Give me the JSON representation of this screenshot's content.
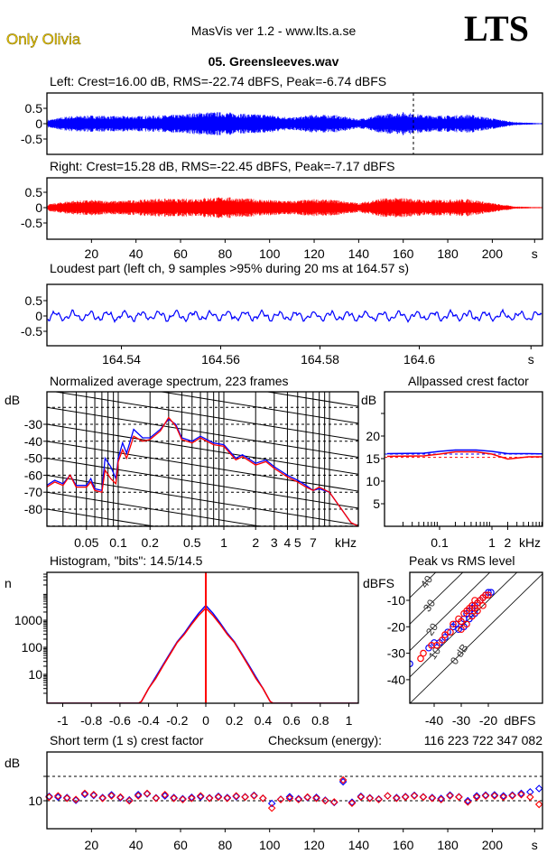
{
  "header": {
    "artist": "Only Olivia",
    "app": "MasVis ver 1.2 - www.lts.a.se",
    "logo": "LTS",
    "file": "05. Greensleeves.wav"
  },
  "colors": {
    "left": "#0000ff",
    "right": "#ff0000",
    "olivia": "#e8c400"
  },
  "chart_data": [
    {
      "id": "left",
      "type": "area",
      "title": "Left: Crest=16.00 dB, RMS=-22.74 dBFS, Peak=-6.74 dBFS",
      "ylim": [
        -1,
        1
      ],
      "yticks": [
        "0.5",
        "0",
        "-0.5"
      ],
      "ytick_values": [
        0.5,
        0,
        -0.5
      ],
      "marker_time_s": 164.57,
      "envelope_step_s": 10,
      "envelope": [
        0.12,
        0.25,
        0.27,
        0.25,
        0.25,
        0.27,
        0.3,
        0.38,
        0.38,
        0.32,
        0.3,
        0.2,
        0.3,
        0.28,
        0.15,
        0.3,
        0.38,
        0.28,
        0.27,
        0.3,
        0.18,
        0.05,
        0.02
      ]
    },
    {
      "id": "right",
      "type": "area",
      "title": "Right: Crest=15.28 dB, RMS=-22.45 dBFS, Peak=-7.17 dBFS",
      "ylim": [
        -1,
        1
      ],
      "yticks": [
        "0.5",
        "0",
        "-0.5"
      ],
      "ytick_values": [
        0.5,
        0,
        -0.5
      ],
      "xlim": [
        0,
        221
      ],
      "xticks": [
        "20",
        "40",
        "60",
        "80",
        "100",
        "120",
        "140",
        "160",
        "180",
        "200",
        "s"
      ],
      "xtick_values": [
        20,
        40,
        60,
        80,
        100,
        120,
        140,
        160,
        180,
        200,
        219
      ],
      "envelope_step_s": 10,
      "envelope": [
        0.1,
        0.22,
        0.25,
        0.22,
        0.25,
        0.3,
        0.28,
        0.32,
        0.35,
        0.3,
        0.25,
        0.22,
        0.28,
        0.25,
        0.15,
        0.3,
        0.32,
        0.25,
        0.27,
        0.28,
        0.15,
        0.04,
        0.02
      ]
    },
    {
      "id": "loudest",
      "type": "line",
      "title": "Loudest part (left  ch, 9 samples >95% during 20 ms at 164.57 s)",
      "xlim": [
        164.525,
        164.625
      ],
      "ylim": [
        -1,
        1
      ],
      "yticks": [
        "0.5",
        "0",
        "-0.5"
      ],
      "ytick_values": [
        0.5,
        0,
        -0.5
      ],
      "xticks": [
        "164.54",
        "164.56",
        "164.58",
        "164.6",
        "s"
      ],
      "xtick_values": [
        164.54,
        164.56,
        164.58,
        164.6,
        164.6225
      ],
      "amplitude": 0.2
    },
    {
      "id": "spectrum",
      "type": "line",
      "title": "Normalized average spectrum, 223 frames",
      "ylabel": "dB",
      "xlabel": "kHz",
      "yticks": [
        "-30",
        "-40",
        "-50",
        "-60",
        "-70",
        "-80"
      ],
      "ytick_values": [
        -30,
        -40,
        -50,
        -60,
        -70,
        -80
      ],
      "xticks": [
        "0.05",
        "0.1",
        "0.2",
        "0.5",
        "1",
        "2",
        "3",
        "4",
        "5",
        "7"
      ],
      "xtick_values": [
        0.05,
        0.1,
        0.2,
        0.5,
        1,
        2,
        3,
        4,
        5,
        7
      ],
      "ylim": [
        -90,
        -19
      ],
      "xlim": [
        0.021,
        18.7
      ],
      "x": [
        0.021,
        0.025,
        0.03,
        0.035,
        0.04,
        0.05,
        0.055,
        0.06,
        0.07,
        0.075,
        0.085,
        0.095,
        0.1,
        0.11,
        0.12,
        0.14,
        0.17,
        0.2,
        0.25,
        0.3,
        0.35,
        0.4,
        0.5,
        0.6,
        0.8,
        1,
        1.3,
        1.5,
        2,
        2.5,
        3,
        4,
        5,
        6,
        7,
        8,
        10,
        13,
        16,
        18.7
      ],
      "series": [
        {
          "name": "left",
          "values": [
            -66,
            -63,
            -65,
            -60,
            -66,
            -66,
            -62,
            -68,
            -69,
            -50,
            -55,
            -62,
            -50,
            -41,
            -47,
            -33,
            -38,
            -38,
            -33,
            -27,
            -30,
            -38,
            -40,
            -37,
            -41,
            -42,
            -50,
            -48,
            -53,
            -51,
            -55,
            -60,
            -63,
            -66,
            -69,
            -68,
            -70,
            -80,
            -88,
            -90
          ]
        },
        {
          "name": "right",
          "values": [
            -67,
            -64,
            -66,
            -60,
            -67,
            -67,
            -64,
            -69,
            -70,
            -57,
            -62,
            -65,
            -52,
            -45,
            -50,
            -37,
            -40,
            -39,
            -34,
            -26,
            -31,
            -39,
            -41,
            -38,
            -42,
            -43,
            -51,
            -49,
            -54,
            -52,
            -56,
            -61,
            -64,
            -67,
            -69,
            -67,
            -70,
            -80,
            -88,
            -90
          ]
        }
      ]
    },
    {
      "id": "allpass",
      "type": "line",
      "title": "Allpassed crest factor",
      "ylabel": "dB",
      "xlabel": "kHz",
      "yticks": [
        "20",
        "15",
        "10",
        "5"
      ],
      "ytick_values": [
        20,
        15,
        10,
        5
      ],
      "xticks": [
        "0.1",
        "1",
        "2"
      ],
      "xtick_values": [
        0.1,
        1,
        2
      ],
      "ylim": [
        0,
        30
      ],
      "x": [
        0.01,
        0.05,
        0.1,
        0.2,
        0.5,
        1,
        2,
        5,
        20
      ],
      "series": [
        {
          "name": "left",
          "values": [
            16.1,
            16.2,
            16.6,
            16.9,
            16.9,
            16.6,
            16.1,
            16.1,
            16.0
          ],
          "reference": 16.0
        },
        {
          "name": "right",
          "values": [
            15.5,
            15.6,
            16.0,
            16.5,
            16.5,
            16.0,
            14.9,
            15.4,
            15.4
          ],
          "reference": 15.28
        }
      ]
    },
    {
      "id": "histogram",
      "type": "bar",
      "title": "Histogram, \"bits\": 14.5/14.5",
      "ylabel": "n",
      "yscale": "log",
      "yticks": [
        "1000",
        "100",
        "10"
      ],
      "ytick_values": [
        1000,
        100,
        10
      ],
      "xticks": [
        "-1",
        "-0.8",
        "-0.6",
        "-0.4",
        "-0.2",
        "0",
        "0.2",
        "0.4",
        "0.6",
        "0.8",
        "1"
      ],
      "xtick_values": [
        -1,
        -0.8,
        -0.6,
        -0.4,
        -0.2,
        0,
        0.2,
        0.4,
        0.6,
        0.8,
        1
      ],
      "xlim": [
        -1.1,
        1.07
      ],
      "abs_x": [
        0,
        0.05,
        0.1,
        0.15,
        0.2,
        0.25,
        0.3,
        0.35,
        0.4,
        0.45
      ],
      "series": [
        {
          "name": "left",
          "values": [
            3500,
            1800,
            800,
            330,
            160,
            60,
            22,
            8,
            3,
            1
          ]
        },
        {
          "name": "right",
          "values": [
            2800,
            1500,
            700,
            300,
            150,
            55,
            20,
            7,
            3,
            1
          ]
        }
      ],
      "zero_spike": 60000
    },
    {
      "id": "peak_rms",
      "type": "scatter",
      "title": "Peak vs RMS level",
      "ylabel": "dBFS",
      "xlabel": "dBFS",
      "xlim": [
        -49,
        0
      ],
      "ylim": [
        -49,
        0.6
      ],
      "yticks": [
        "-10",
        "-20",
        "-30",
        "-40"
      ],
      "ytick_values": [
        -10,
        -20,
        -30,
        -40
      ],
      "xticks": [
        "-40",
        "-30",
        "-20"
      ],
      "xtick_values": [
        -40,
        -30,
        -20
      ],
      "crest_lines": [
        "40",
        "30",
        "20",
        "10",
        "0 dB"
      ],
      "crest_line_values": [
        40,
        30,
        20,
        10,
        0
      ],
      "series": [
        {
          "name": "left",
          "points": [
            [
              -49,
              -34
            ],
            [
              -42,
              -28
            ],
            [
              -40,
              -26
            ],
            [
              -38,
              -26
            ],
            [
              -36,
              -24
            ],
            [
              -35,
              -22
            ],
            [
              -33,
              -20
            ],
            [
              -32,
              -19
            ],
            [
              -31,
              -21
            ],
            [
              -30,
              -18
            ],
            [
              -29,
              -17
            ],
            [
              -28,
              -15
            ],
            [
              -27,
              -14
            ],
            [
              -26,
              -13
            ],
            [
              -25,
              -12
            ],
            [
              -24,
              -11
            ],
            [
              -23,
              -10
            ],
            [
              -22,
              -9
            ],
            [
              -21,
              -8
            ],
            [
              -20,
              -7
            ],
            [
              -19,
              -7
            ],
            [
              -25,
              -15
            ],
            [
              -27,
              -17
            ],
            [
              -29,
              -20
            ]
          ]
        },
        {
          "name": "right",
          "points": [
            [
              -45,
              -32
            ],
            [
              -44,
              -30
            ],
            [
              -41,
              -27
            ],
            [
              -39,
              -27
            ],
            [
              -37,
              -25
            ],
            [
              -36,
              -23
            ],
            [
              -34,
              -22
            ],
            [
              -33,
              -19
            ],
            [
              -31,
              -17
            ],
            [
              -30,
              -18
            ],
            [
              -29,
              -15
            ],
            [
              -28,
              -14
            ],
            [
              -27,
              -13
            ],
            [
              -26,
              -12
            ],
            [
              -25,
              -13
            ],
            [
              -24,
              -11
            ],
            [
              -23,
              -10
            ],
            [
              -22,
              -9
            ],
            [
              -21,
              -8
            ],
            [
              -20,
              -8
            ],
            [
              -24,
              -14
            ],
            [
              -26,
              -16
            ],
            [
              -28,
              -19
            ],
            [
              -30,
              -21
            ],
            [
              -22,
              -12
            ],
            [
              -25,
              -10
            ]
          ]
        }
      ]
    },
    {
      "id": "short_crest",
      "type": "scatter",
      "title": "Short term (1 s) crest factor",
      "checksum_label": "Checksum (energy):",
      "checksum": "116 223 722 347 082",
      "ylabel": "dB",
      "yticks": [
        "10"
      ],
      "ytick_values": [
        10
      ],
      "reference_lines": [
        10,
        20
      ],
      "xlim": [
        0,
        221
      ],
      "xticks": [
        "20",
        "40",
        "60",
        "80",
        "100",
        "120",
        "140",
        "160",
        "180",
        "200",
        "s"
      ],
      "xtick_values": [
        20,
        40,
        60,
        80,
        100,
        120,
        140,
        160,
        180,
        200,
        219
      ],
      "x_start": 1,
      "x_step": 4,
      "series": [
        {
          "name": "left",
          "values": [
            11.8,
            11.5,
            11.3,
            10.2,
            12.6,
            12.2,
            11.3,
            12.4,
            11.2,
            10.3,
            12.5,
            12.8,
            11.2,
            12.0,
            11.3,
            10.8,
            11.4,
            11.6,
            11.2,
            11.8,
            11.3,
            11.7,
            11.6,
            12.2,
            11.0,
            8.9,
            10.6,
            11.6,
            10.8,
            11.3,
            11.4,
            10.2,
            9.3,
            17.8,
            9.4,
            11.8,
            11.2,
            10.7,
            12.0,
            11.3,
            11.7,
            12.2,
            11.6,
            11.3,
            10.9,
            12.3,
            11.6,
            10.0,
            12.0,
            12.3,
            12.4,
            12.0,
            12.3,
            13.0,
            13.6,
            15.0
          ]
        },
        {
          "name": "right",
          "values": [
            11.5,
            12.0,
            11.0,
            10.5,
            13.0,
            12.5,
            11.0,
            12.0,
            11.5,
            10.0,
            12.0,
            13.0,
            11.0,
            12.5,
            11.0,
            10.5,
            11.0,
            12.0,
            11.0,
            11.5,
            11.0,
            12.0,
            11.5,
            12.0,
            11.0,
            7.0,
            10.5,
            11.0,
            10.5,
            11.5,
            11.0,
            10.0,
            9.5,
            18.5,
            9.0,
            11.5,
            11.0,
            10.5,
            12.0,
            11.0,
            11.5,
            12.0,
            11.5,
            11.0,
            10.5,
            12.0,
            11.5,
            9.5,
            11.5,
            12.0,
            12.0,
            11.5,
            12.0,
            12.5,
            11.5,
            8.5
          ]
        }
      ]
    }
  ]
}
